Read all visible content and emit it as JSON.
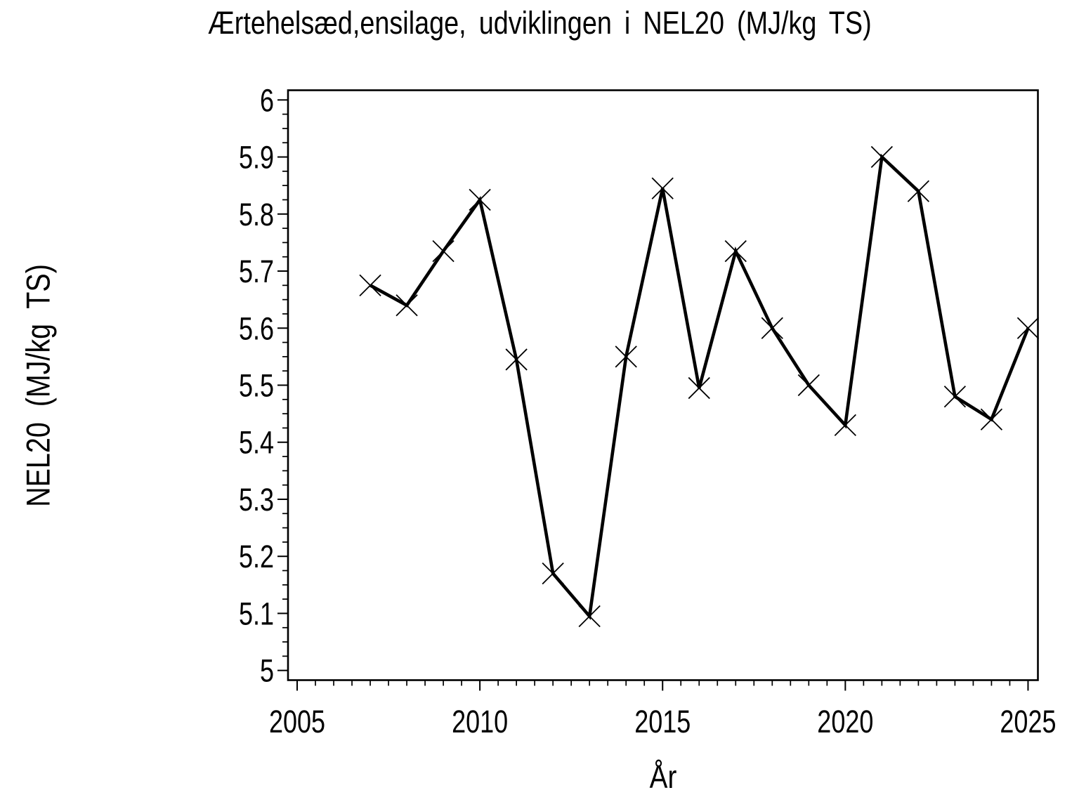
{
  "page": {
    "background": "#FFFFFF",
    "foreground": "#000000"
  },
  "chart_data": {
    "type": "line",
    "title": "Ærtehelsæd,ensilage, udviklingen i NEL20 (MJ/kg TS)",
    "xlabel": "År",
    "ylabel": "NEL20 (MJ/kg TS)",
    "x": [
      2007,
      2008,
      2009,
      2010,
      2011,
      2012,
      2013,
      2014,
      2015,
      2016,
      2017,
      2018,
      2019,
      2020,
      2021,
      2022,
      2023,
      2024,
      2025
    ],
    "y": [
      5.675,
      5.64,
      5.735,
      5.825,
      5.545,
      5.17,
      5.095,
      5.55,
      5.845,
      5.495,
      5.735,
      5.6,
      5.5,
      5.43,
      5.9,
      5.84,
      5.48,
      5.44,
      5.6
    ],
    "marker": "x",
    "line_color": "#000000",
    "grid": false,
    "legend": "none",
    "xlim": [
      2004.75,
      2025.27
    ],
    "ylim": [
      4.983,
      6.017
    ],
    "x_major_ticks": [
      2005,
      2010,
      2015,
      2020,
      2025
    ],
    "x_minor_step": 0.5,
    "y_major_ticks": [
      5,
      5.1,
      5.2,
      5.3,
      5.4,
      5.5,
      5.6,
      5.7,
      5.8,
      5.9,
      6
    ],
    "y_minor_step": 0.025
  }
}
